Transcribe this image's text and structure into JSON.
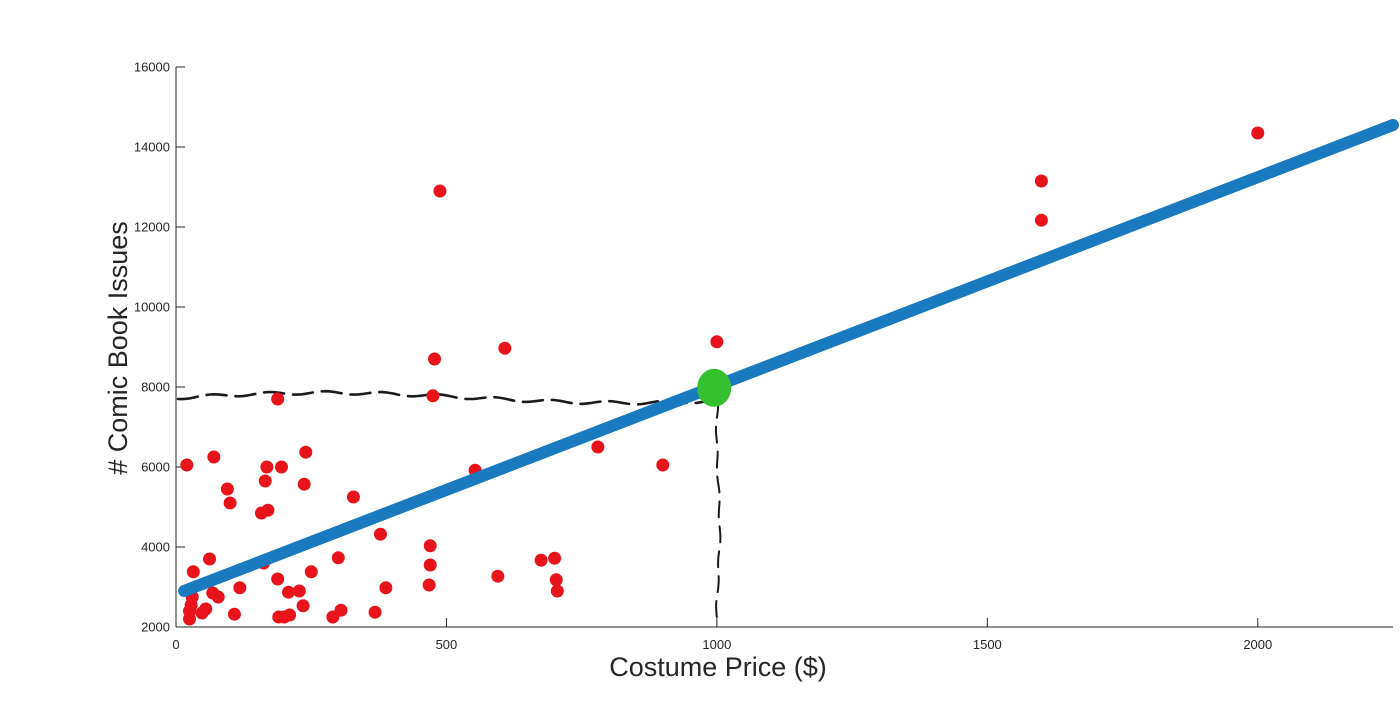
{
  "chart_data": {
    "type": "scatter",
    "xlabel": "Costume Price ($)",
    "ylabel": "# Comic Book Issues",
    "xlim": [
      0,
      2250
    ],
    "ylim": [
      2000,
      16000
    ],
    "x_ticks": [
      "0",
      "500",
      "1000",
      "1500",
      "2000"
    ],
    "y_ticks": [
      "2000",
      "4000",
      "6000",
      "8000",
      "10000",
      "12000",
      "14000",
      "16000"
    ],
    "grid": false,
    "points": [
      {
        "x": 20,
        "y": 6050
      },
      {
        "x": 25,
        "y": 2200
      },
      {
        "x": 25,
        "y": 2400
      },
      {
        "x": 28,
        "y": 2550
      },
      {
        "x": 30,
        "y": 2750
      },
      {
        "x": 32,
        "y": 3380
      },
      {
        "x": 48,
        "y": 2350
      },
      {
        "x": 55,
        "y": 2450
      },
      {
        "x": 62,
        "y": 3700
      },
      {
        "x": 68,
        "y": 2850
      },
      {
        "x": 70,
        "y": 6250
      },
      {
        "x": 78,
        "y": 2750
      },
      {
        "x": 95,
        "y": 5450
      },
      {
        "x": 100,
        "y": 5100
      },
      {
        "x": 108,
        "y": 2320
      },
      {
        "x": 118,
        "y": 2980
      },
      {
        "x": 158,
        "y": 4850
      },
      {
        "x": 162,
        "y": 3600
      },
      {
        "x": 165,
        "y": 5650
      },
      {
        "x": 168,
        "y": 6000
      },
      {
        "x": 170,
        "y": 4920
      },
      {
        "x": 188,
        "y": 7700
      },
      {
        "x": 188,
        "y": 3200
      },
      {
        "x": 190,
        "y": 2250
      },
      {
        "x": 195,
        "y": 6000
      },
      {
        "x": 200,
        "y": 2250
      },
      {
        "x": 208,
        "y": 2870
      },
      {
        "x": 210,
        "y": 2300
      },
      {
        "x": 228,
        "y": 2900
      },
      {
        "x": 235,
        "y": 2530
      },
      {
        "x": 237,
        "y": 5570
      },
      {
        "x": 240,
        "y": 6370
      },
      {
        "x": 250,
        "y": 3380
      },
      {
        "x": 290,
        "y": 2250
      },
      {
        "x": 300,
        "y": 3730
      },
      {
        "x": 305,
        "y": 2420
      },
      {
        "x": 328,
        "y": 5250
      },
      {
        "x": 368,
        "y": 2370
      },
      {
        "x": 378,
        "y": 4320
      },
      {
        "x": 388,
        "y": 2980
      },
      {
        "x": 468,
        "y": 3050
      },
      {
        "x": 470,
        "y": 3550
      },
      {
        "x": 470,
        "y": 4030
      },
      {
        "x": 475,
        "y": 7780
      },
      {
        "x": 478,
        "y": 8700
      },
      {
        "x": 488,
        "y": 12900
      },
      {
        "x": 553,
        "y": 5920
      },
      {
        "x": 595,
        "y": 3270
      },
      {
        "x": 608,
        "y": 8970
      },
      {
        "x": 675,
        "y": 3670
      },
      {
        "x": 700,
        "y": 3720
      },
      {
        "x": 703,
        "y": 3180
      },
      {
        "x": 705,
        "y": 2900
      },
      {
        "x": 780,
        "y": 6500
      },
      {
        "x": 900,
        "y": 6050
      },
      {
        "x": 1000,
        "y": 9130
      },
      {
        "x": 1600,
        "y": 13150
      },
      {
        "x": 1600,
        "y": 12170
      },
      {
        "x": 2000,
        "y": 14350
      }
    ],
    "fit_line": {
      "x": [
        15,
        2250
      ],
      "y": [
        2900,
        14550
      ]
    },
    "highlight_point": {
      "x": 995,
      "y": 7980
    },
    "colors": {
      "points": "#e8131b",
      "fit_line": "#1a7ac0",
      "highlight": "#33bf2e",
      "guides": "#1a1a1a",
      "axis": "#262626"
    }
  }
}
